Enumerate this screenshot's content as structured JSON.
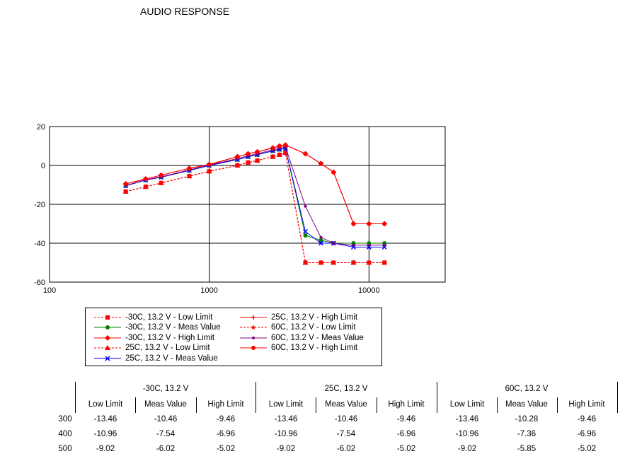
{
  "title": "AUDIO RESPONSE",
  "chart_data": {
    "type": "line",
    "x_scale": "log",
    "xlim": [
      100,
      30000
    ],
    "ylim": [
      -60,
      20
    ],
    "x_ticks": [
      "100",
      "1000",
      "10000"
    ],
    "y_ticks": [
      "20",
      "0",
      "-20",
      "-40",
      "-60"
    ],
    "grid": true,
    "legend_position": "bottom-left",
    "x": [
      300,
      400,
      500,
      750,
      1000,
      1500,
      1750,
      2000,
      2500,
      2750,
      3000,
      4000,
      5000,
      6000,
      8000,
      10000,
      12500
    ],
    "series": [
      {
        "name": "-30C, 13.2 V - Low Limit",
        "color": "#ff0000",
        "marker": "square",
        "dashed": true,
        "values": [
          -13.46,
          -10.96,
          -9.02,
          -5.5,
          -3.0,
          0.0,
          1.5,
          2.5,
          4.5,
          5.5,
          6.5,
          -50,
          -50,
          -50,
          -50,
          -50,
          -50
        ]
      },
      {
        "name": "-30C, 13.2 V - Meas Value",
        "color": "#008000",
        "marker": "circle",
        "dashed": false,
        "values": [
          -10.46,
          -7.54,
          -6.02,
          -2.6,
          0.0,
          3.0,
          4.5,
          5.5,
          7.5,
          8.2,
          8.8,
          -36,
          -38.5,
          -40,
          -40,
          -40,
          -40
        ]
      },
      {
        "name": "-30C, 13.2 V - High Limit",
        "color": "#ff0000",
        "marker": "diamond",
        "dashed": false,
        "values": [
          -9.46,
          -6.96,
          -5.02,
          -1.5,
          0.5,
          4.5,
          6.0,
          7.0,
          9.0,
          10.0,
          10.5,
          6.0,
          1.0,
          -3.5,
          -30,
          -30,
          -30
        ]
      },
      {
        "name": "25C, 13.2 V - Low Limit",
        "color": "#ff0000",
        "marker": "triangle",
        "dashed": true,
        "values": [
          -13.46,
          -10.96,
          -9.02,
          -5.5,
          -3.0,
          0.0,
          1.5,
          2.5,
          4.5,
          5.5,
          6.5,
          -50,
          -50,
          -50,
          -50,
          -50,
          -50
        ]
      },
      {
        "name": "25C, 13.2 V - Meas Value",
        "color": "#0000ff",
        "marker": "x",
        "dashed": false,
        "values": [
          -10.46,
          -7.54,
          -6.02,
          -2.6,
          0.0,
          3.0,
          4.5,
          5.5,
          7.5,
          8.2,
          8.8,
          -34,
          -40,
          -40,
          -42,
          -42,
          -42
        ]
      },
      {
        "name": "25C, 13.2 V - High Limit",
        "color": "#ff0000",
        "marker": "plus",
        "dashed": false,
        "values": [
          -9.46,
          -6.96,
          -5.02,
          -1.5,
          0.5,
          4.5,
          6.0,
          7.0,
          9.0,
          10.0,
          10.5,
          6.0,
          1.0,
          -3.5,
          -30,
          -30,
          -30
        ]
      },
      {
        "name": "60C, 13.2 V - Low Limit",
        "color": "#ff0000",
        "marker": "star",
        "dashed": true,
        "values": [
          -13.46,
          -10.96,
          -9.02,
          -5.5,
          -3.0,
          0.0,
          1.5,
          2.5,
          4.5,
          5.5,
          6.5,
          -50,
          -50,
          -50,
          -50,
          -50,
          -50
        ]
      },
      {
        "name": "60C, 13.2 V - Meas Value",
        "color": "#800080",
        "marker": "dot",
        "dashed": false,
        "values": [
          -10.28,
          -7.36,
          -5.85,
          -2.3,
          0.3,
          3.5,
          5.0,
          6.0,
          8.0,
          8.8,
          9.5,
          -21,
          -37,
          -40,
          -41,
          -41,
          -41
        ]
      },
      {
        "name": "60C, 13.2 V - High Limit",
        "color": "#ff0000",
        "marker": "circle",
        "dashed": false,
        "values": [
          -9.46,
          -6.96,
          -5.02,
          -1.5,
          0.5,
          4.5,
          6.0,
          7.0,
          9.0,
          10.0,
          10.5,
          6.0,
          1.0,
          -3.5,
          -30,
          -30,
          -30
        ]
      }
    ]
  },
  "table": {
    "groups": [
      "-30C, 13.2 V",
      "25C, 13.2 V",
      "60C, 13.2 V"
    ],
    "columns": [
      "Low Limit",
      "Meas Value",
      "High Limit"
    ],
    "rows": [
      {
        "freq": "300",
        "values": [
          "-13.46",
          "-10.46",
          "-9.46",
          "-13.46",
          "-10.46",
          "-9.46",
          "-13.46",
          "-10.28",
          "-9.46"
        ]
      },
      {
        "freq": "400",
        "values": [
          "-10.96",
          "-7.54",
          "-6.96",
          "-10.96",
          "-7.54",
          "-6.96",
          "-10.96",
          "-7.36",
          "-6.96"
        ]
      },
      {
        "freq": "500",
        "values": [
          "-9.02",
          "-6.02",
          "-5.02",
          "-9.02",
          "-6.02",
          "-5.02",
          "-9.02",
          "-5.85",
          "-5.02"
        ]
      }
    ]
  }
}
